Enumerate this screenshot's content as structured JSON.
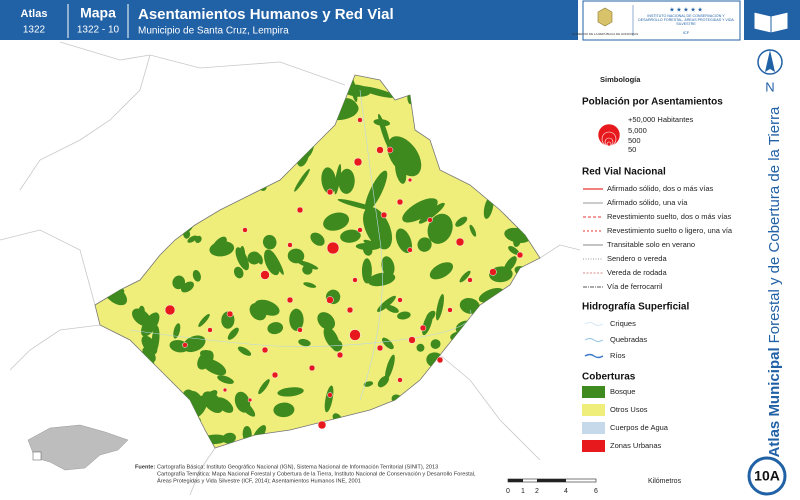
{
  "header": {
    "atlas_label": "Atlas",
    "atlas_number": "1322",
    "map_label": "Mapa",
    "map_number": "1322 - 10",
    "title": "Asentamientos Humanos y Red Vial",
    "subtitle": "Municipio de Santa Cruz, Lempira",
    "logo_government": "GOBIERNO DE LA REPÚBLICA DE HONDURAS",
    "logo_institute": "INSTITUTO NACIONAL DE CONSERVACIÓN Y DESARROLLO FORESTAL, ÁREAS PROTEGIDAS Y VIDA SILVESTRE",
    "logo_acronym": "ICF"
  },
  "sidebar": {
    "north": "N",
    "title_bold": "Atlas Municipal",
    "title_rest": "Forestal y de Cobertura de la Tierra",
    "page": "10A"
  },
  "legend": {
    "title": "Simbología",
    "population": {
      "title": "Población por Asentamientos",
      "items": [
        "+50,000 Habitantes",
        "5,000",
        "500",
        "50"
      ]
    },
    "roads": {
      "title": "Red Vial Nacional",
      "items": [
        "Afirmado sólido, dos o más vías",
        "Afirmado sólido, una vía",
        "Revestimiento suelto, dos o más vías",
        "Revestimiento suelto o ligero, una vía",
        "Transitable solo en verano",
        "Sendero o vereda",
        "Vereda de rodada",
        "Vía de ferrocarril"
      ]
    },
    "hydro": {
      "title": "Hidrografía Superficial",
      "items": [
        "Criques",
        "Quebradas",
        "Ríos"
      ]
    },
    "cover": {
      "title": "Coberturas",
      "items": [
        "Bosque",
        "Otros Usos",
        "Cuerpos de Agua",
        "Zonas Urbanas"
      ]
    }
  },
  "footer": {
    "source_label": "Fuente:",
    "lines": [
      "Cartografía Básica: Instituto Geográfico Nacional (IGN), Sistema Nacional de Información Territorial (SINIT), 2013",
      "Cartografía Temática: Mapa Nacional Forestal y Cobertura de la Tierra, Instituto Nacional de Conservación y Desarrollo Forestal,",
      "Áreas Protegidas y Vida Silvestre (ICF, 2014); Asentamientos Humanos INE, 2001"
    ],
    "scale_labels": [
      "0",
      "1",
      "2",
      "4",
      "6"
    ],
    "scale_unit": "Kilómetros"
  }
}
